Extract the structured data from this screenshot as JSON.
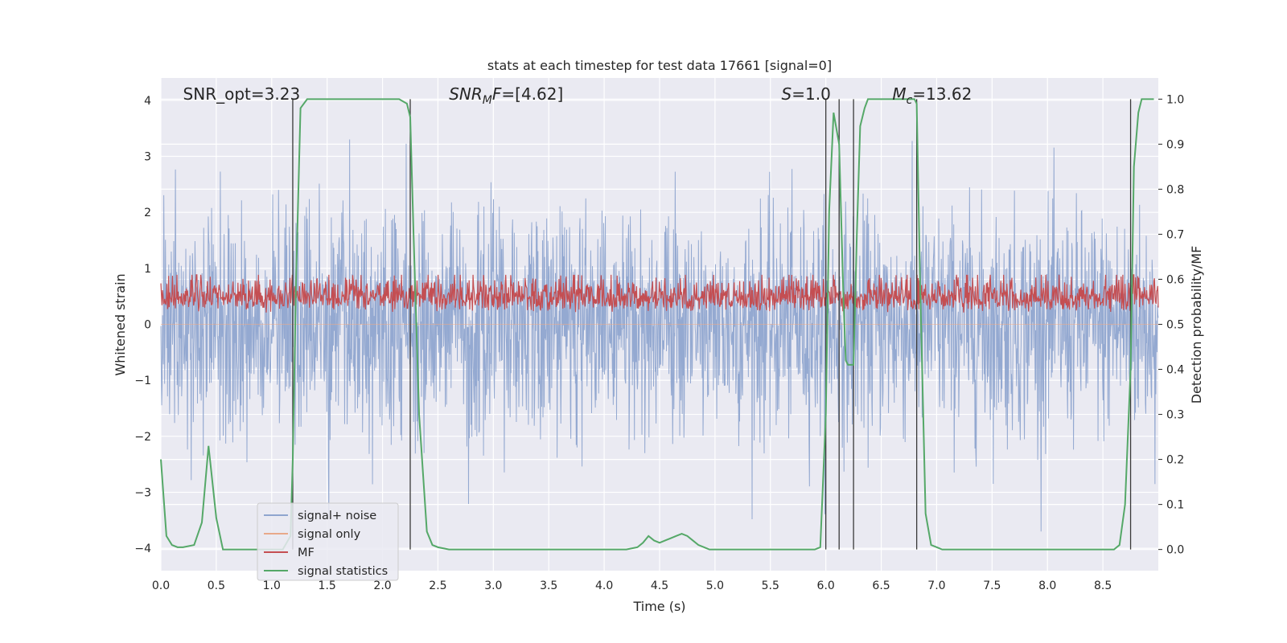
{
  "chart_data": {
    "type": "line",
    "title": "stats at each timestep for test data 17661 [signal=0]",
    "xlabel": "Time (s)",
    "ylabel_left": "Whitened strain",
    "ylabel_right": "Detection probability/MF",
    "xlim": [
      0,
      9.0
    ],
    "ylim_left": [
      -4.4,
      4.4
    ],
    "ylim_right": [
      -0.047,
      1.047
    ],
    "x_ticks": [
      0.0,
      0.5,
      1.0,
      1.5,
      2.0,
      2.5,
      3.0,
      3.5,
      4.0,
      4.5,
      5.0,
      5.5,
      6.0,
      6.5,
      7.0,
      7.5,
      8.0,
      8.5
    ],
    "x_tick_labels": [
      "0.0",
      "0.5",
      "1.0",
      "1.5",
      "2.0",
      "2.5",
      "3.0",
      "3.5",
      "4.0",
      "4.5",
      "5.0",
      "5.5",
      "6.0",
      "6.5",
      "7.0",
      "7.5",
      "8.0",
      "8.5"
    ],
    "y_left_ticks": [
      -4,
      -3,
      -2,
      -1,
      0,
      1,
      2,
      3,
      4
    ],
    "y_left_tick_labels": [
      "−4",
      "−3",
      "−2",
      "−1",
      "0",
      "1",
      "2",
      "3",
      "4"
    ],
    "y_right_ticks": [
      0.0,
      0.1,
      0.2,
      0.3,
      0.4,
      0.5,
      0.6,
      0.7,
      0.8,
      0.9,
      1.0
    ],
    "y_right_tick_labels": [
      "0.0",
      "0.1",
      "0.2",
      "0.3",
      "0.4",
      "0.5",
      "0.6",
      "0.7",
      "0.8",
      "0.9",
      "1.0"
    ],
    "grid": true,
    "legend_position": "lower-left",
    "annotations": [
      {
        "text": "SNR_opt=3.23",
        "x": 0.2
      },
      {
        "text_parts": [
          "SNR",
          "M",
          "F=[4.62]"
        ],
        "style": "italic-sub",
        "x": 2.6
      },
      {
        "text_parts": [
          "S",
          "=1.0"
        ],
        "style": "italic",
        "x": 5.6
      },
      {
        "text_parts": [
          "M",
          "c",
          "=13.62"
        ],
        "style": "italic-sub",
        "x": 6.6
      }
    ],
    "vertical_lines_x": [
      1.19,
      2.25,
      6.0,
      6.12,
      6.25,
      6.82,
      8.75
    ],
    "series": [
      {
        "name": "signal+ noise",
        "color": "#8fa5cf",
        "axis": "left",
        "kind": "noise",
        "x_range": [
          0,
          9.0
        ],
        "amplitude_sigma": 1.0,
        "typical_peak": 2.6,
        "max": 4.0,
        "min": -3.7
      },
      {
        "name": "signal only",
        "color": "#e8a98a",
        "axis": "left",
        "values_desc": "flat at zero",
        "x": [
          0,
          9.0
        ],
        "y": [
          0,
          0
        ]
      },
      {
        "name": "MF",
        "color": "#c44e52",
        "axis": "right",
        "kind": "noise",
        "x_range": [
          0,
          9.0
        ],
        "baseline": 0.5,
        "band": [
          0.5,
          0.63
        ],
        "max": 0.61
      },
      {
        "name": "signal statistics",
        "color": "#55a868",
        "axis": "right",
        "x": [
          0.0,
          0.05,
          0.1,
          0.15,
          0.2,
          0.3,
          0.37,
          0.43,
          0.5,
          0.56,
          0.6,
          0.8,
          1.0,
          1.1,
          1.17,
          1.19,
          1.22,
          1.26,
          1.32,
          1.4,
          1.6,
          1.8,
          2.0,
          2.15,
          2.22,
          2.25,
          2.28,
          2.33,
          2.4,
          2.45,
          2.5,
          2.6,
          2.8,
          3.0,
          3.5,
          4.0,
          4.2,
          4.3,
          4.35,
          4.4,
          4.45,
          4.5,
          4.55,
          4.6,
          4.65,
          4.7,
          4.75,
          4.8,
          4.85,
          4.9,
          4.95,
          5.0,
          5.1,
          5.5,
          5.8,
          5.9,
          5.95,
          6.0,
          6.03,
          6.07,
          6.12,
          6.16,
          6.18,
          6.2,
          6.25,
          6.28,
          6.31,
          6.35,
          6.38,
          6.4,
          6.5,
          6.7,
          6.8,
          6.82,
          6.85,
          6.9,
          6.95,
          7.0,
          7.05,
          7.1,
          7.5,
          8.0,
          8.5,
          8.6,
          8.65,
          8.7,
          8.75,
          8.78,
          8.82,
          8.85,
          8.9,
          8.96
        ],
        "y": [
          0.2,
          0.03,
          0.01,
          0.005,
          0.005,
          0.01,
          0.06,
          0.23,
          0.07,
          0.0,
          0.0,
          0.0,
          0.0,
          0.0,
          0.03,
          0.2,
          0.6,
          0.98,
          1.0,
          1.0,
          1.0,
          1.0,
          1.0,
          1.0,
          0.99,
          0.96,
          0.7,
          0.3,
          0.04,
          0.01,
          0.005,
          0.0,
          0.0,
          0.0,
          0.0,
          0.0,
          0.0,
          0.005,
          0.015,
          0.03,
          0.02,
          0.015,
          0.02,
          0.025,
          0.03,
          0.035,
          0.03,
          0.02,
          0.01,
          0.005,
          0.0,
          0.0,
          0.0,
          0.0,
          0.0,
          0.0,
          0.005,
          0.3,
          0.75,
          0.97,
          0.9,
          0.55,
          0.42,
          0.41,
          0.41,
          0.7,
          0.94,
          0.98,
          1.0,
          1.0,
          1.0,
          1.0,
          1.0,
          0.99,
          0.6,
          0.08,
          0.01,
          0.005,
          0.0,
          0.0,
          0.0,
          0.0,
          0.0,
          0.0,
          0.01,
          0.1,
          0.4,
          0.85,
          0.97,
          1.0,
          1.0,
          1.0
        ]
      }
    ]
  }
}
